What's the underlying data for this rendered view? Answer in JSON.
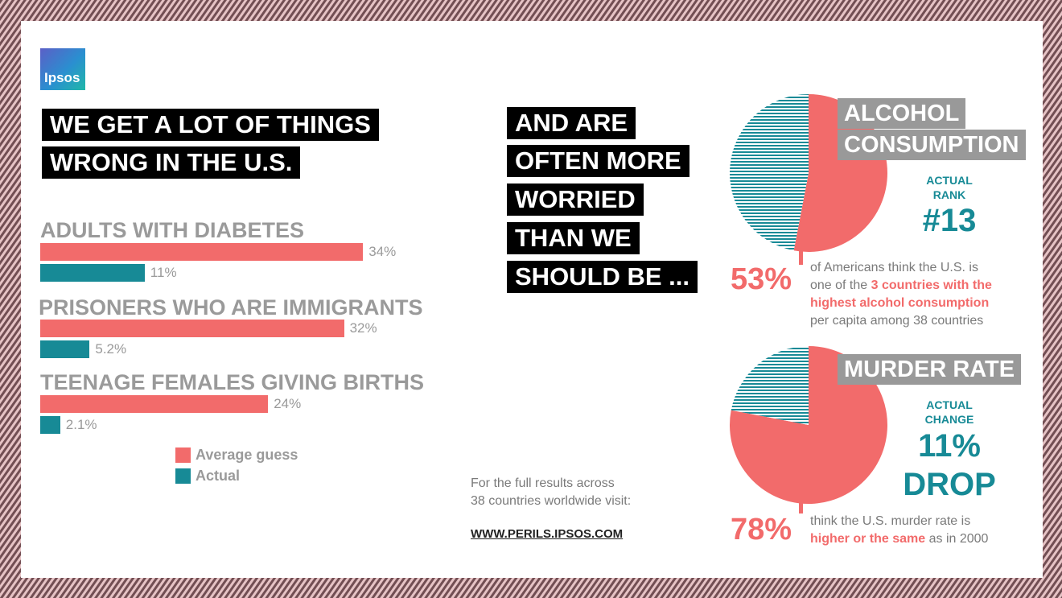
{
  "logo": "Ipsos",
  "headline": [
    "WE GET A LOT OF THINGS",
    "WRONG IN THE U.S."
  ],
  "worry_headline": [
    "AND ARE",
    "OFTEN MORE",
    "WORRIED",
    "THAN WE",
    "SHOULD BE ..."
  ],
  "colors": {
    "guess": "#f26b6b",
    "actual": "#178a96",
    "header_gray": "#999999"
  },
  "chart_data": [
    {
      "type": "bar",
      "orientation": "horizontal",
      "categories": [
        "ADULTS WITH DIABETES",
        "PRISONERS WHO ARE IMMIGRANTS",
        "TEENAGE FEMALES GIVING BIRTHS"
      ],
      "series": [
        {
          "name": "Average guess",
          "values": [
            34,
            32,
            24
          ],
          "labels": [
            "34%",
            "32%",
            "24%"
          ]
        },
        {
          "name": "Actual",
          "values": [
            11,
            5.2,
            2.1
          ],
          "labels": [
            "11%",
            "5.2%",
            "2.1%"
          ]
        }
      ],
      "xlim": [
        0,
        40
      ],
      "legend": "bottom"
    },
    {
      "type": "pie",
      "title": [
        "ALCOHOL",
        "CONSUMPTION"
      ],
      "slices": [
        {
          "label": "think U.S. is in top 3",
          "value": 53
        },
        {
          "label": "other",
          "value": 47
        }
      ]
    },
    {
      "type": "pie",
      "title": [
        "MURDER RATE"
      ],
      "slices": [
        {
          "label": "higher or the same",
          "value": 78
        },
        {
          "label": "other",
          "value": 22
        }
      ]
    }
  ],
  "alcohol": {
    "actual_label": [
      "ACTUAL",
      "RANK"
    ],
    "actual_value": "#13",
    "pct": "53%",
    "desc_1": "of Americans think the U.S. is",
    "desc_2a": "one of the ",
    "desc_2b": "3 countries with the",
    "desc_3": "highest alcohol consumption",
    "desc_4": "per capita among 38 countries"
  },
  "murder": {
    "actual_label": [
      "ACTUAL",
      "CHANGE"
    ],
    "actual_value": [
      "11%",
      "DROP"
    ],
    "pct": "78%",
    "desc_1": "think the U.S. murder rate is",
    "desc_2a": "higher or the same",
    "desc_2b": " as in 2000"
  },
  "footer": {
    "line1": "For the full results across",
    "line2": "38 countries worldwide visit:",
    "url": "WWW.PERILS.IPSOS.COM"
  }
}
